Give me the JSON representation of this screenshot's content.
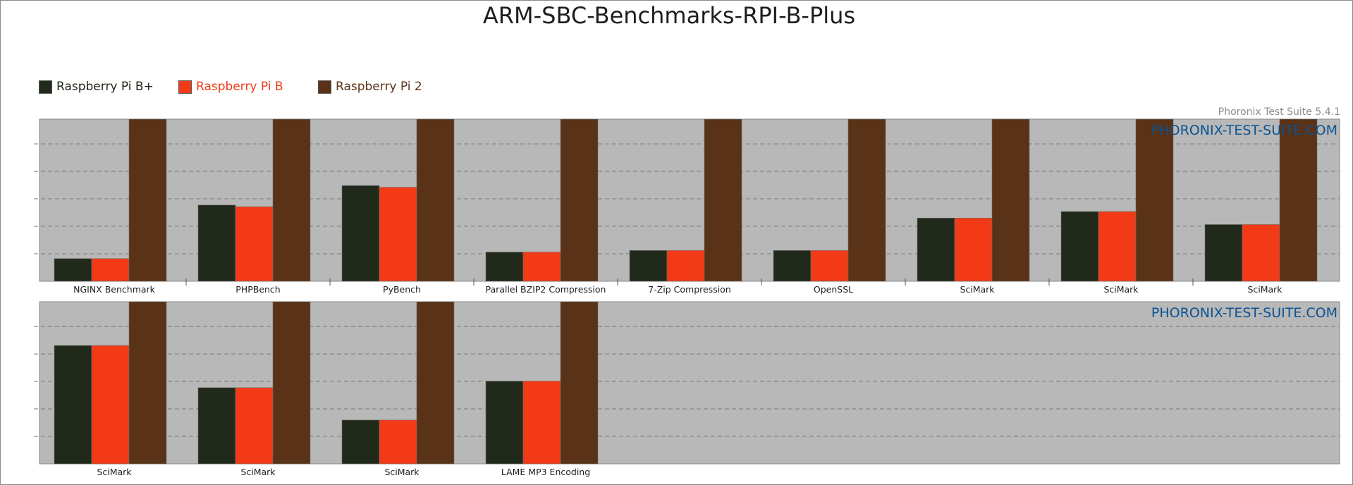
{
  "chart_data": {
    "type": "bar",
    "title": "ARM-SBC-Benchmarks-RPI-B-Plus",
    "version_label": "Phoronix Test Suite 5.4.1",
    "watermark": "PHORONIX-TEST-SUITE.COM",
    "ylim": [
      0,
      1
    ],
    "series": [
      {
        "name": "Raspberry Pi B+",
        "color": "#21291a"
      },
      {
        "name": "Raspberry Pi B",
        "color": "#f23a17"
      },
      {
        "name": "Raspberry Pi 2",
        "color": "#593217"
      }
    ],
    "panels": [
      {
        "categories": [
          "NGINX Benchmark",
          "PHPBench",
          "PyBench",
          "Parallel BZIP2 Compression",
          "7-Zip Compression",
          "OpenSSL",
          "SciMark",
          "SciMark",
          "SciMark"
        ],
        "values": [
          [
            0.14,
            0.47,
            0.59,
            0.18,
            0.19,
            0.19,
            0.39,
            0.43,
            0.35
          ],
          [
            0.14,
            0.46,
            0.58,
            0.18,
            0.19,
            0.19,
            0.39,
            0.43,
            0.35
          ],
          [
            1.0,
            1.0,
            1.0,
            1.0,
            1.0,
            1.0,
            1.0,
            1.0,
            1.0
          ]
        ]
      },
      {
        "categories": [
          "SciMark",
          "SciMark",
          "SciMark",
          "LAME MP3 Encoding"
        ],
        "values": [
          [
            0.73,
            0.47,
            0.27,
            0.51
          ],
          [
            0.73,
            0.47,
            0.27,
            0.51
          ],
          [
            1.0,
            1.0,
            1.0,
            1.0
          ]
        ]
      }
    ]
  }
}
